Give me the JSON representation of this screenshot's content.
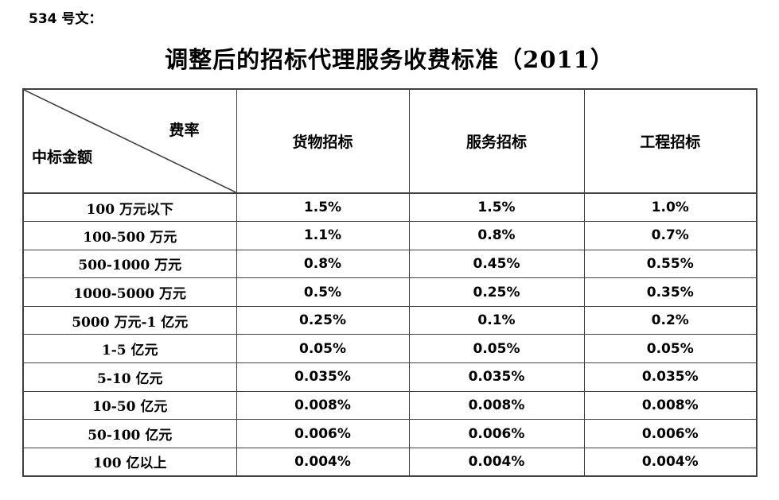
{
  "page": {
    "doc_label": "534 号文：",
    "title": "调整后的招标代理服务收费标准（2011）"
  },
  "table": {
    "corner": {
      "top_right": "费率",
      "bottom_left": "中标金额"
    },
    "columns": [
      "货物招标",
      "服务招标",
      "工程招标"
    ],
    "rows": [
      {
        "label": "100 万元以下",
        "values": [
          "1.5%",
          "1.5%",
          "1.0%"
        ]
      },
      {
        "label": "100-500 万元",
        "values": [
          "1.1%",
          "0.8%",
          "0.7%"
        ]
      },
      {
        "label": "500-1000 万元",
        "values": [
          "0.8%",
          "0.45%",
          "0.55%"
        ]
      },
      {
        "label": "1000-5000 万元",
        "values": [
          "0.5%",
          "0.25%",
          "0.35%"
        ]
      },
      {
        "label": "5000 万元-1 亿元",
        "values": [
          "0.25%",
          "0.1%",
          "0.2%"
        ]
      },
      {
        "label": "1-5 亿元",
        "values": [
          "0.05%",
          "0.05%",
          "0.05%"
        ]
      },
      {
        "label": "5-10 亿元",
        "values": [
          "0.035%",
          "0.035%",
          "0.035%"
        ]
      },
      {
        "label": "10-50 亿元",
        "values": [
          "0.008%",
          "0.008%",
          "0.008%"
        ]
      },
      {
        "label": "50-100 亿元",
        "values": [
          "0.006%",
          "0.006%",
          "0.006%"
        ]
      },
      {
        "label": "100 亿以上",
        "values": [
          "0.004%",
          "0.004%",
          "0.004%"
        ]
      }
    ]
  },
  "colors": {
    "text": "#000000",
    "border": "#404040",
    "background": "#ffffff"
  }
}
